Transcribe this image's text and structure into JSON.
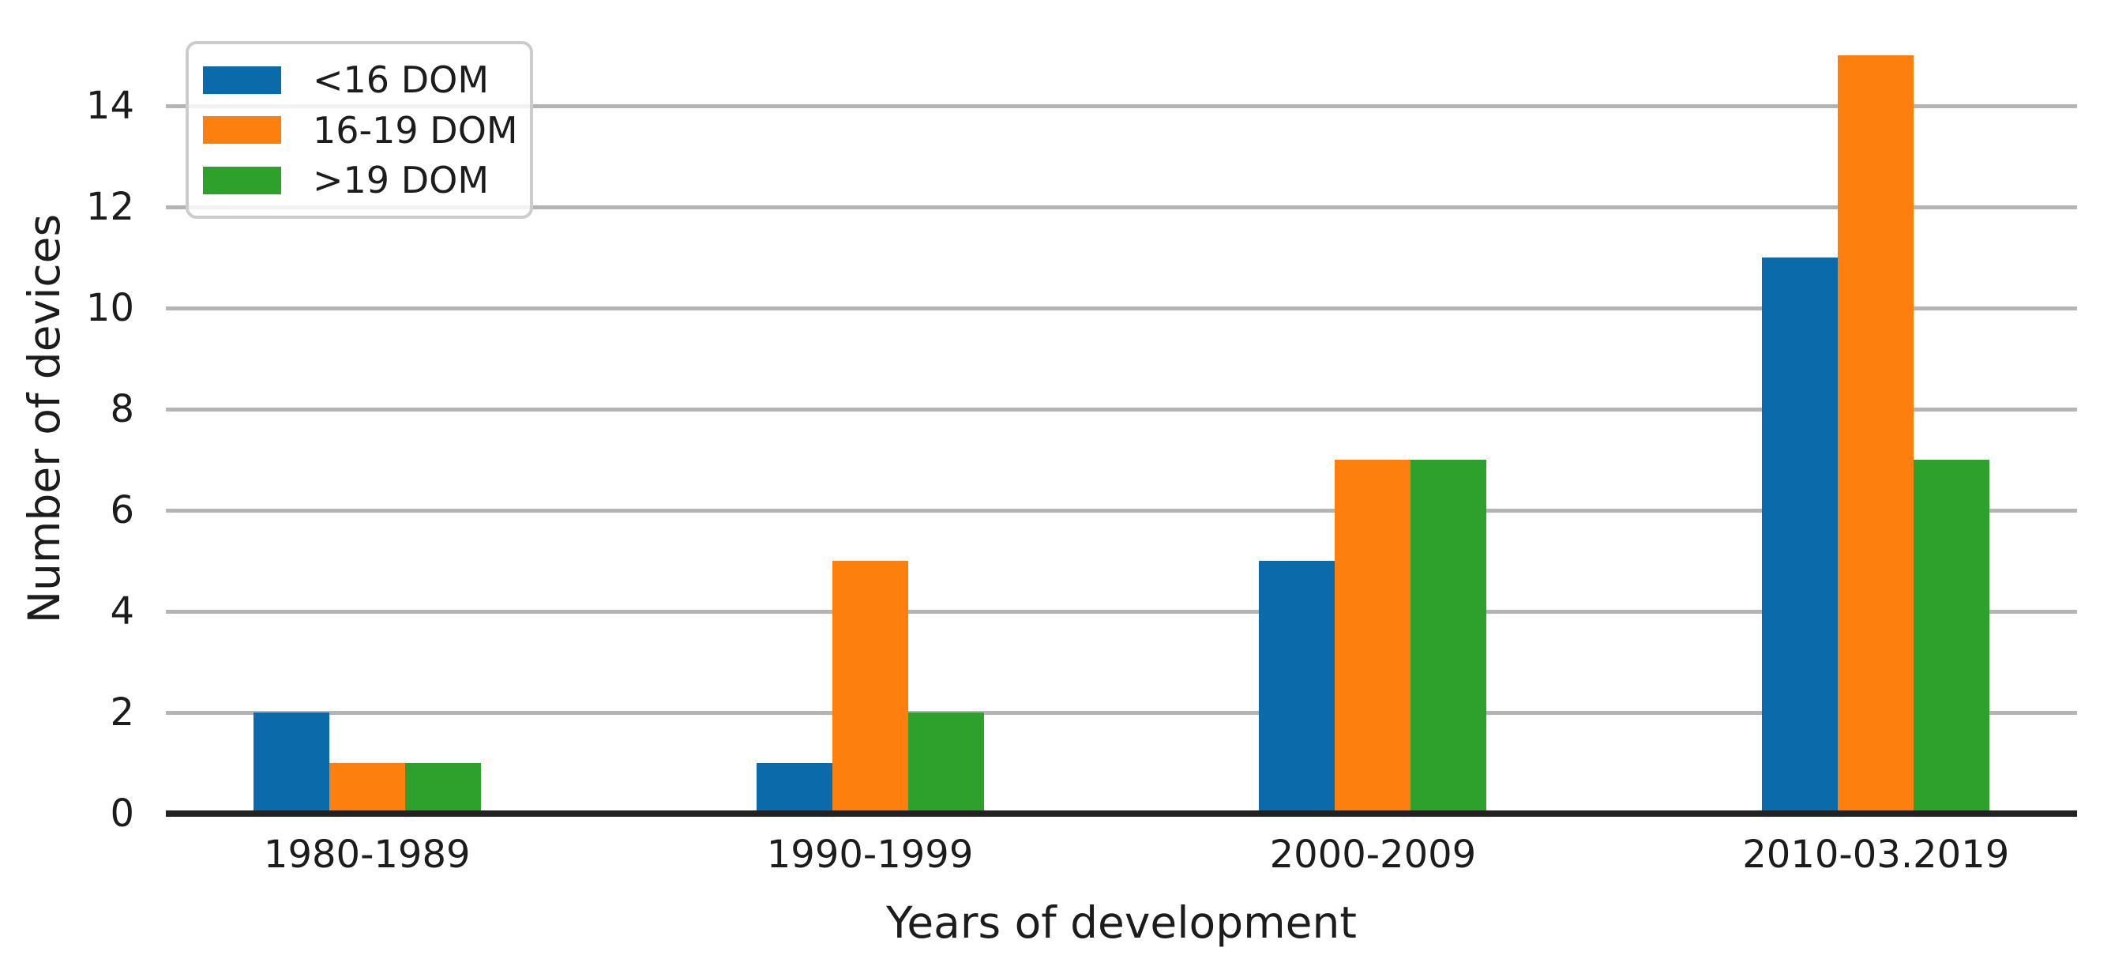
{
  "chart_data": {
    "type": "bar",
    "title": "",
    "xlabel": "Years of development",
    "ylabel": "Number of devices",
    "categories": [
      "1980-1989",
      "1990-1999",
      "2000-2009",
      "2010-03.2019"
    ],
    "series": [
      {
        "name": "<16 DOM",
        "color": "#0a6aaa",
        "values": [
          2,
          1,
          5,
          11
        ]
      },
      {
        "name": "16-19 DOM",
        "color": "#fd800f",
        "values": [
          1,
          5,
          7,
          15
        ]
      },
      {
        "name": ">19 DOM",
        "color": "#2da12c",
        "values": [
          1,
          2,
          7,
          7
        ]
      }
    ],
    "y_ticks": [
      0,
      2,
      4,
      6,
      8,
      10,
      12,
      14
    ],
    "ylim": [
      0,
      15.6
    ],
    "xlim_pad_categories": 0.4,
    "grid": "horizontal",
    "legend_position": "upper-left",
    "colors": {
      "grid": "#b4b4b4",
      "axis_line": "#222222",
      "text": "#1c1c1c",
      "legend_border": "#cccccc",
      "legend_background": "rgba(255,255,255,0.82)",
      "background": "#ffffff"
    }
  }
}
